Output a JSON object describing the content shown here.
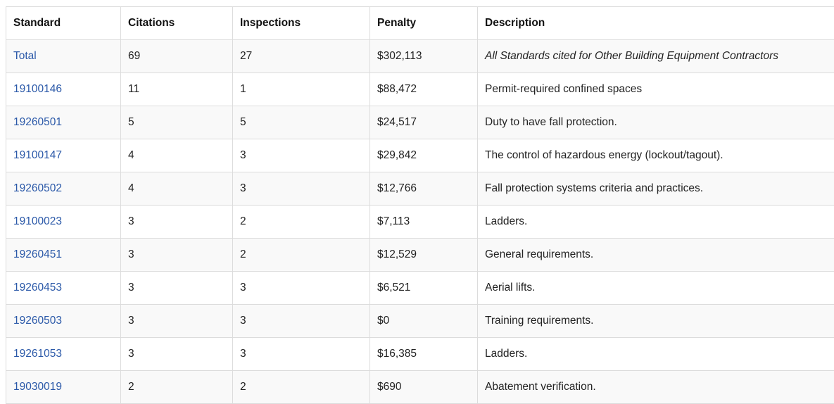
{
  "table": {
    "headers": {
      "standard": "Standard",
      "citations": "Citations",
      "inspections": "Inspections",
      "penalty": "Penalty",
      "description": "Description"
    },
    "rows": [
      {
        "standard": "Total",
        "citations": "69",
        "inspections": "27",
        "penalty": "$302,113",
        "description": "All Standards cited for Other Building Equipment Contractors",
        "italic": true
      },
      {
        "standard": "19100146",
        "citations": "11",
        "inspections": "1",
        "penalty": "$88,472",
        "description": "Permit-required confined spaces"
      },
      {
        "standard": "19260501",
        "citations": "5",
        "inspections": "5",
        "penalty": "$24,517",
        "description": "Duty to have fall protection."
      },
      {
        "standard": "19100147",
        "citations": "4",
        "inspections": "3",
        "penalty": "$29,842",
        "description": "The control of hazardous energy (lockout/tagout)."
      },
      {
        "standard": "19260502",
        "citations": "4",
        "inspections": "3",
        "penalty": "$12,766",
        "description": "Fall protection systems criteria and practices."
      },
      {
        "standard": "19100023",
        "citations": "3",
        "inspections": "2",
        "penalty": "$7,113",
        "description": "Ladders."
      },
      {
        "standard": "19260451",
        "citations": "3",
        "inspections": "2",
        "penalty": "$12,529",
        "description": "General requirements."
      },
      {
        "standard": "19260453",
        "citations": "3",
        "inspections": "3",
        "penalty": "$6,521",
        "description": "Aerial lifts."
      },
      {
        "standard": "19260503",
        "citations": "3",
        "inspections": "3",
        "penalty": "$0",
        "description": "Training requirements."
      },
      {
        "standard": "19261053",
        "citations": "3",
        "inspections": "3",
        "penalty": "$16,385",
        "description": "Ladders."
      },
      {
        "standard": "19030019",
        "citations": "2",
        "inspections": "2",
        "penalty": "$690",
        "description": "Abatement verification."
      }
    ]
  },
  "colors": {
    "link": "#2a58a8",
    "border": "#dcdcdc",
    "stripe": "#f9f9f9"
  }
}
